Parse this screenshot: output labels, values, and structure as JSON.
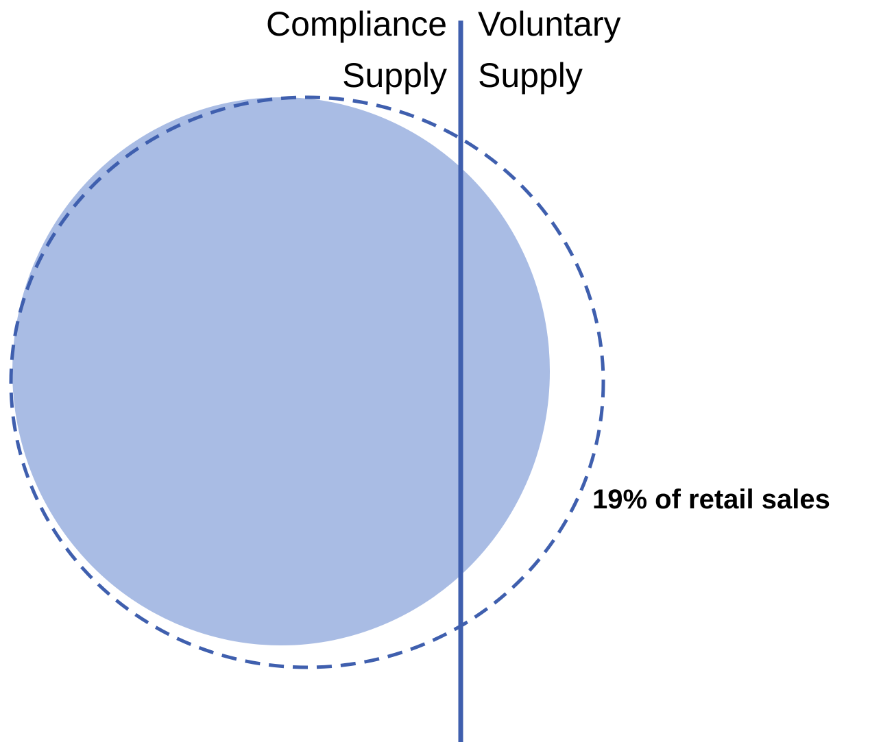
{
  "labels": {
    "left": [
      "Compliance",
      "Supply"
    ],
    "right": [
      "Voluntary",
      "Supply"
    ]
  },
  "annotation": "19% of retail sales"
}
